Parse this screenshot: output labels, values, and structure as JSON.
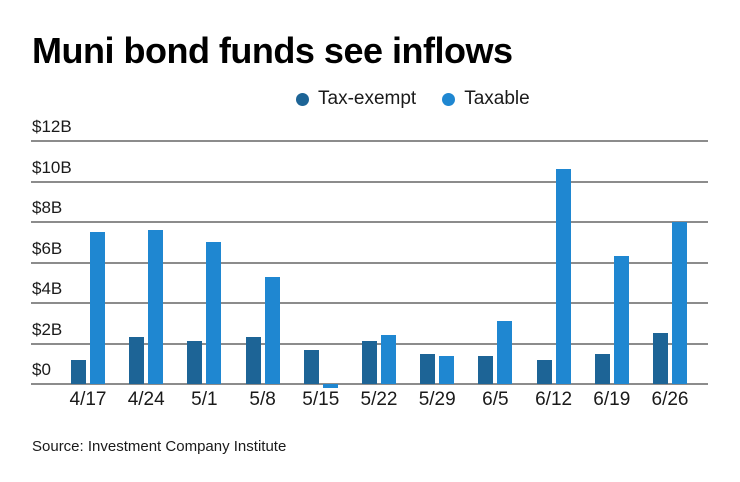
{
  "header": {
    "title": "Muni bond funds see inflows"
  },
  "legend": [
    {
      "label": "Tax-exempt",
      "color": "#1d6496"
    },
    {
      "label": "Taxable",
      "color": "#1f87d1"
    }
  ],
  "source": "Source: Investment Company Institute",
  "colors": {
    "tax_exempt": "#1d6496",
    "taxable": "#1f87d1",
    "gridline": "#8c8c8c",
    "text": "#1a1a1a"
  },
  "chart_data": {
    "type": "bar",
    "title": "Muni bond funds see inflows",
    "unit": "billions of dollars",
    "categories": [
      "4/17",
      "4/24",
      "5/1",
      "5/8",
      "5/15",
      "5/22",
      "5/29",
      "6/5",
      "6/12",
      "6/19",
      "6/26"
    ],
    "series": [
      {
        "name": "Tax-exempt",
        "color": "#1d6496",
        "values": [
          1.2,
          2.3,
          2.1,
          2.3,
          1.7,
          2.1,
          1.5,
          1.4,
          1.2,
          1.5,
          2.5
        ]
      },
      {
        "name": "Taxable",
        "color": "#1f87d1",
        "values": [
          7.5,
          7.6,
          7.0,
          5.3,
          -0.2,
          2.4,
          1.4,
          3.1,
          10.6,
          6.3,
          8.0
        ]
      }
    ],
    "y_ticks": [
      {
        "value": 0,
        "label": "$0"
      },
      {
        "value": 2,
        "label": "$2B"
      },
      {
        "value": 4,
        "label": "$4B"
      },
      {
        "value": 6,
        "label": "$6B"
      },
      {
        "value": 8,
        "label": "$8B"
      },
      {
        "value": 10,
        "label": "$10B"
      },
      {
        "value": 12,
        "label": "$12B"
      }
    ],
    "ylim": [
      0,
      12
    ],
    "grid": "horizontal",
    "legend_position": "top",
    "source": "Source: Investment Company Institute"
  }
}
